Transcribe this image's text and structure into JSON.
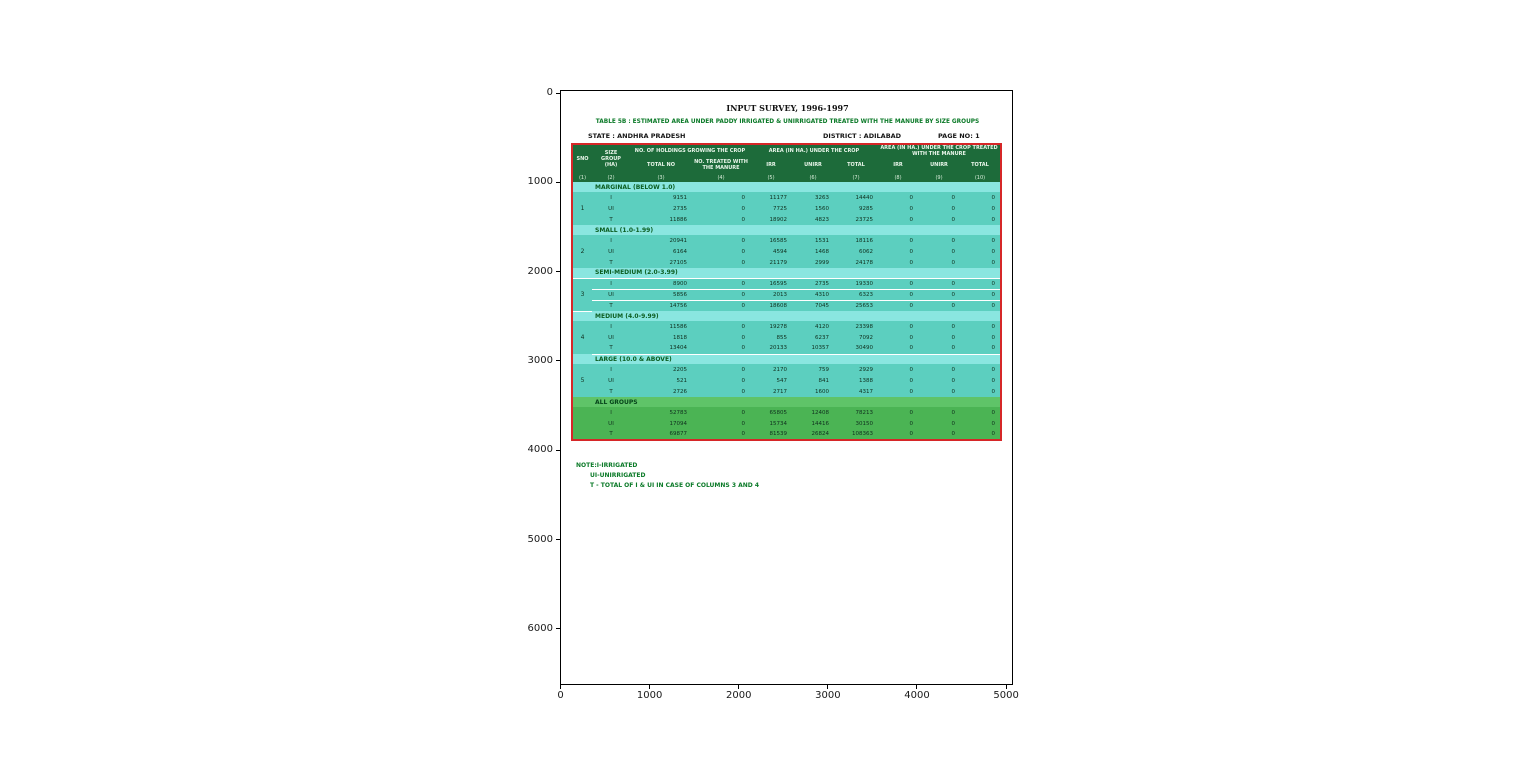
{
  "figure": {
    "x_ticks": [
      "0",
      "1000",
      "2000",
      "3000",
      "4000",
      "5000"
    ],
    "y_ticks": [
      "0",
      "1000",
      "2000",
      "3000",
      "4000",
      "5000",
      "6000"
    ]
  },
  "document": {
    "title": "INPUT SURVEY, 1996-1997",
    "subtitle": "TABLE 5B : ESTIMATED AREA UNDER PADDY IRRIGATED & UNIRRIGATED TREATED WITH THE MANURE BY SIZE GROUPS",
    "state_label": "STATE : ANDHRA PRADESH",
    "district_label": "DISTRICT : ADILABAD",
    "page_label": "PAGE NO: 1",
    "notes": [
      "NOTE:I-IRRIGATED",
      "UI-UNIRRIGATED",
      "T - TOTAL OF I & UI IN CASE OF COLUMNS 3 AND 4"
    ]
  },
  "table": {
    "col1_header": "SNO",
    "col2_header": "SIZE GROUP (HA)",
    "header_groups": [
      {
        "label": "NO. OF HOLDINGS GROWING THE CROP",
        "span": 2
      },
      {
        "label": "AREA (IN HA.) UNDER THE CROP",
        "span": 3
      },
      {
        "label": "AREA (IN HA.) UNDER THE CROP TREATED WITH THE MANURE",
        "span": 3
      }
    ],
    "sub_headers": [
      "TOTAL NO",
      "NO. TREATED WITH THE MANURE",
      "IRR",
      "UNIRR",
      "TOTAL",
      "IRR",
      "UNIRR",
      "TOTAL"
    ],
    "column_numbers": [
      "(1)",
      "(2)",
      "(3)",
      "(4)",
      "(5)",
      "(6)",
      "(7)",
      "(8)",
      "(9)",
      "(10)"
    ],
    "groups": [
      {
        "sno": "1",
        "name": "MARGINAL (BELOW 1.0)",
        "all_groups": false,
        "rows": [
          {
            "label": "I",
            "values": [
              9151,
              0,
              11177,
              3263,
              14440,
              0,
              0,
              0
            ]
          },
          {
            "label": "UI",
            "values": [
              2735,
              0,
              7725,
              1560,
              9285,
              0,
              0,
              0
            ]
          },
          {
            "label": "T",
            "values": [
              11886,
              0,
              18902,
              4823,
              23725,
              0,
              0,
              0
            ]
          }
        ]
      },
      {
        "sno": "2",
        "name": "SMALL (1.0-1.99)",
        "all_groups": false,
        "rows": [
          {
            "label": "I",
            "values": [
              20941,
              0,
              16585,
              1531,
              18116,
              0,
              0,
              0
            ]
          },
          {
            "label": "UI",
            "values": [
              6164,
              0,
              4594,
              1468,
              6062,
              0,
              0,
              0
            ]
          },
          {
            "label": "T",
            "values": [
              27105,
              0,
              21179,
              2999,
              24178,
              0,
              0,
              0
            ]
          }
        ]
      },
      {
        "sno": "3",
        "name": "SEMI-MEDIUM (2.0-3.99)",
        "all_groups": false,
        "rows": [
          {
            "label": "I",
            "values": [
              8900,
              0,
              16595,
              2735,
              19330,
              0,
              0,
              0
            ]
          },
          {
            "label": "UI",
            "values": [
              5856,
              0,
              2013,
              4310,
              6323,
              0,
              0,
              0
            ]
          },
          {
            "label": "T",
            "values": [
              14756,
              0,
              18608,
              7045,
              25653,
              0,
              0,
              0
            ]
          }
        ]
      },
      {
        "sno": "4",
        "name": "MEDIUM (4.0-9.99)",
        "all_groups": false,
        "rows": [
          {
            "label": "I",
            "values": [
              11586,
              0,
              19278,
              4120,
              23398,
              0,
              0,
              0
            ]
          },
          {
            "label": "UI",
            "values": [
              1818,
              0,
              855,
              6237,
              7092,
              0,
              0,
              0
            ]
          },
          {
            "label": "T",
            "values": [
              13404,
              0,
              20133,
              10357,
              30490,
              0,
              0,
              0
            ]
          }
        ]
      },
      {
        "sno": "5",
        "name": "LARGE (10.0 & ABOVE)",
        "all_groups": false,
        "rows": [
          {
            "label": "I",
            "values": [
              2205,
              0,
              2170,
              759,
              2929,
              0,
              0,
              0
            ]
          },
          {
            "label": "UI",
            "values": [
              521,
              0,
              547,
              841,
              1388,
              0,
              0,
              0
            ]
          },
          {
            "label": "T",
            "values": [
              2726,
              0,
              2717,
              1600,
              4317,
              0,
              0,
              0
            ]
          }
        ]
      },
      {
        "sno": "",
        "name": "ALL GROUPS",
        "all_groups": true,
        "rows": [
          {
            "label": "I",
            "values": [
              52783,
              0,
              65805,
              12408,
              78213,
              0,
              0,
              0
            ]
          },
          {
            "label": "UI",
            "values": [
              17094,
              0,
              15734,
              14416,
              30150,
              0,
              0,
              0
            ]
          },
          {
            "label": "T",
            "values": [
              69877,
              0,
              81539,
              26824,
              108363,
              0,
              0,
              0
            ]
          }
        ]
      }
    ]
  },
  "colors": {
    "red": "#d62728",
    "header_bg": "#1d6b3a",
    "body_bg": "#5ccfbf",
    "section_bg": "#8ae6e0",
    "allgreen": "#4bb454",
    "allgreen_light": "#5fc468",
    "green_text": "#0b7a28",
    "green_dark": "#0b5d20",
    "ink": "#10301f"
  }
}
